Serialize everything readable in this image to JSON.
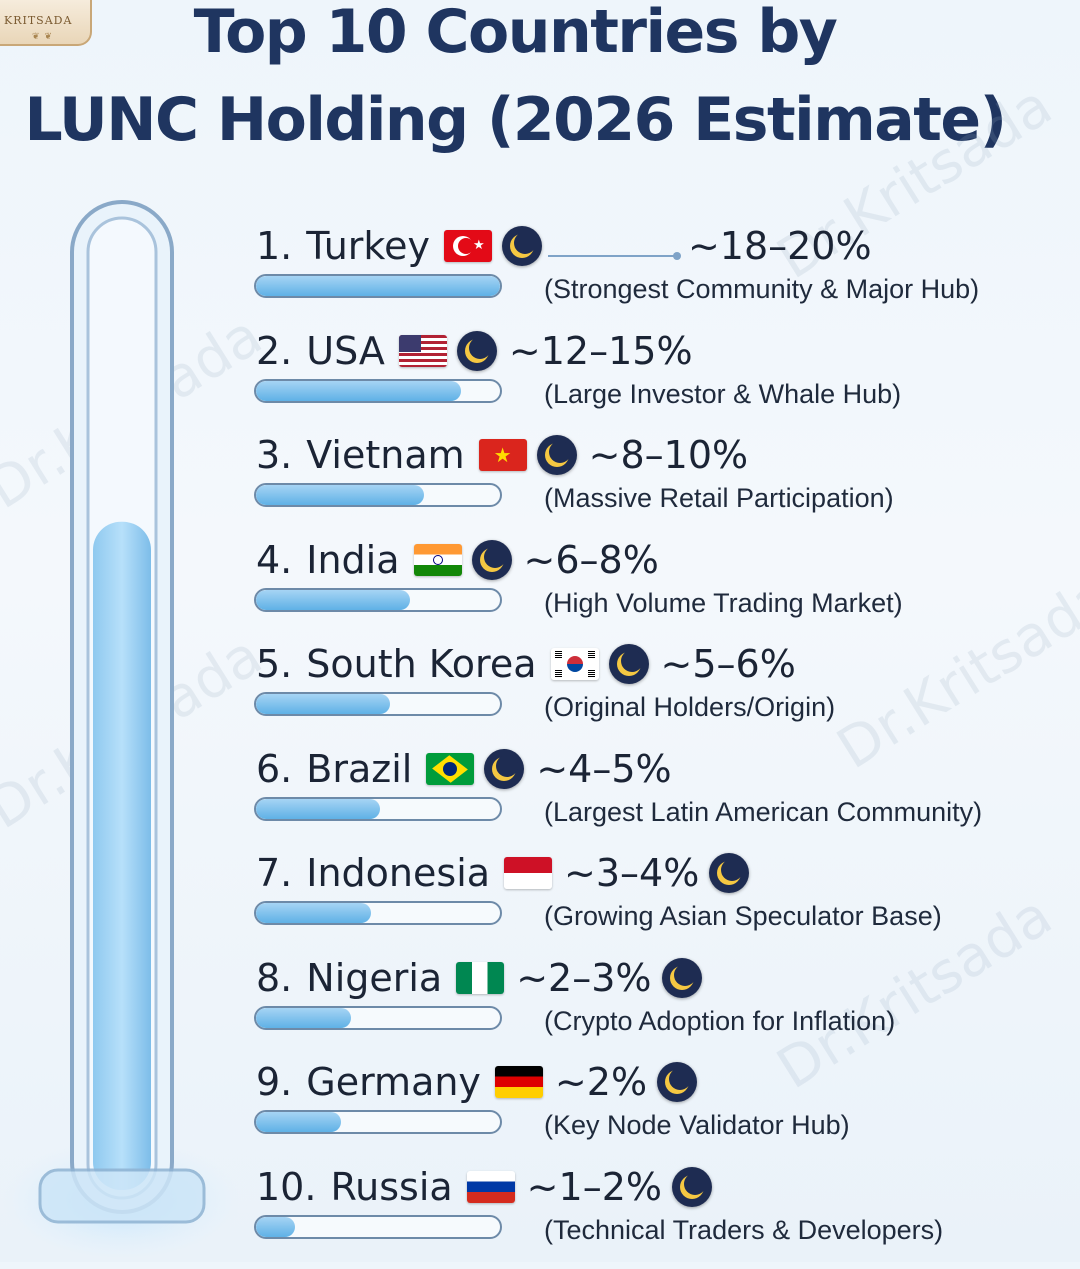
{
  "header": {
    "logo_text": "KRITSADA",
    "title_line1": "Top 10 Countries by",
    "title_line2": "LUNC Holding (2026 Estimate)"
  },
  "watermark": "Dr.Kritsada",
  "chart_data": {
    "type": "bar",
    "title": "Top 10 Countries by LUNC Holding (2026 Estimate)",
    "categories": [
      "Turkey",
      "USA",
      "Vietnam",
      "India",
      "South Korea",
      "Brazil",
      "Indonesia",
      "Nigeria",
      "Germany",
      "Russia"
    ],
    "series": [
      {
        "values_low": [
          18,
          12,
          8,
          6,
          5,
          4,
          3,
          2,
          2,
          1
        ],
        "values_high": [
          20,
          15,
          10,
          8,
          6,
          5,
          4,
          3,
          2,
          2
        ],
        "bar_fill_fraction": [
          1.0,
          0.84,
          0.69,
          0.63,
          0.55,
          0.51,
          0.47,
          0.39,
          0.35,
          0.16
        ]
      }
    ],
    "thermometer_fill_fraction": 0.69,
    "rows": [
      {
        "rank": "1.",
        "country": "Turkey",
        "flag": "turkey-flag",
        "pct": "~18–20%",
        "desc": "(Strongest Community & Major Hub)",
        "coin_after_pct": false
      },
      {
        "rank": "2.",
        "country": "USA",
        "flag": "usa-flag",
        "pct": "~12–15%",
        "desc": "(Large Investor & Whale Hub)",
        "coin_after_pct": false
      },
      {
        "rank": "3.",
        "country": "Vietnam",
        "flag": "vietnam-flag",
        "pct": "~8–10%",
        "desc": "(Massive Retail Participation)",
        "coin_after_pct": false
      },
      {
        "rank": "4.",
        "country": "India",
        "flag": "india-flag",
        "pct": "~6–8%",
        "desc": "(High Volume Trading Market)",
        "coin_after_pct": false
      },
      {
        "rank": "5.",
        "country": "South Korea",
        "flag": "south-korea-flag",
        "pct": "~5–6%",
        "desc": "(Original Holders/Origin)",
        "coin_after_pct": false
      },
      {
        "rank": "6.",
        "country": "Brazil",
        "flag": "brazil-flag",
        "pct": "~4–5%",
        "desc": "(Largest Latin American Community)",
        "coin_after_pct": false
      },
      {
        "rank": "7.",
        "country": "Indonesia",
        "flag": "indonesia-flag",
        "pct": "~3–4%",
        "desc": "(Growing Asian Speculator Base)",
        "coin_after_pct": true
      },
      {
        "rank": "8.",
        "country": "Nigeria",
        "flag": "nigeria-flag",
        "pct": "~2–3%",
        "desc": "(Crypto Adoption for Inflation)",
        "coin_after_pct": true
      },
      {
        "rank": "9.",
        "country": "Germany",
        "flag": "germany-flag",
        "pct": "~2%",
        "desc": "(Key Node Validator Hub)",
        "coin_after_pct": true
      },
      {
        "rank": "10.",
        "country": "Russia",
        "flag": "russia-flag",
        "pct": "~1–2%",
        "desc": "(Technical Traders & Developers)",
        "coin_after_pct": true
      }
    ]
  },
  "colors": {
    "title": "#1f3560",
    "bar_fill": "#5fb1e6",
    "bar_border": "#6d8aa8",
    "coin_dark": "#1e2c52",
    "coin_gold": "#f5c842"
  }
}
